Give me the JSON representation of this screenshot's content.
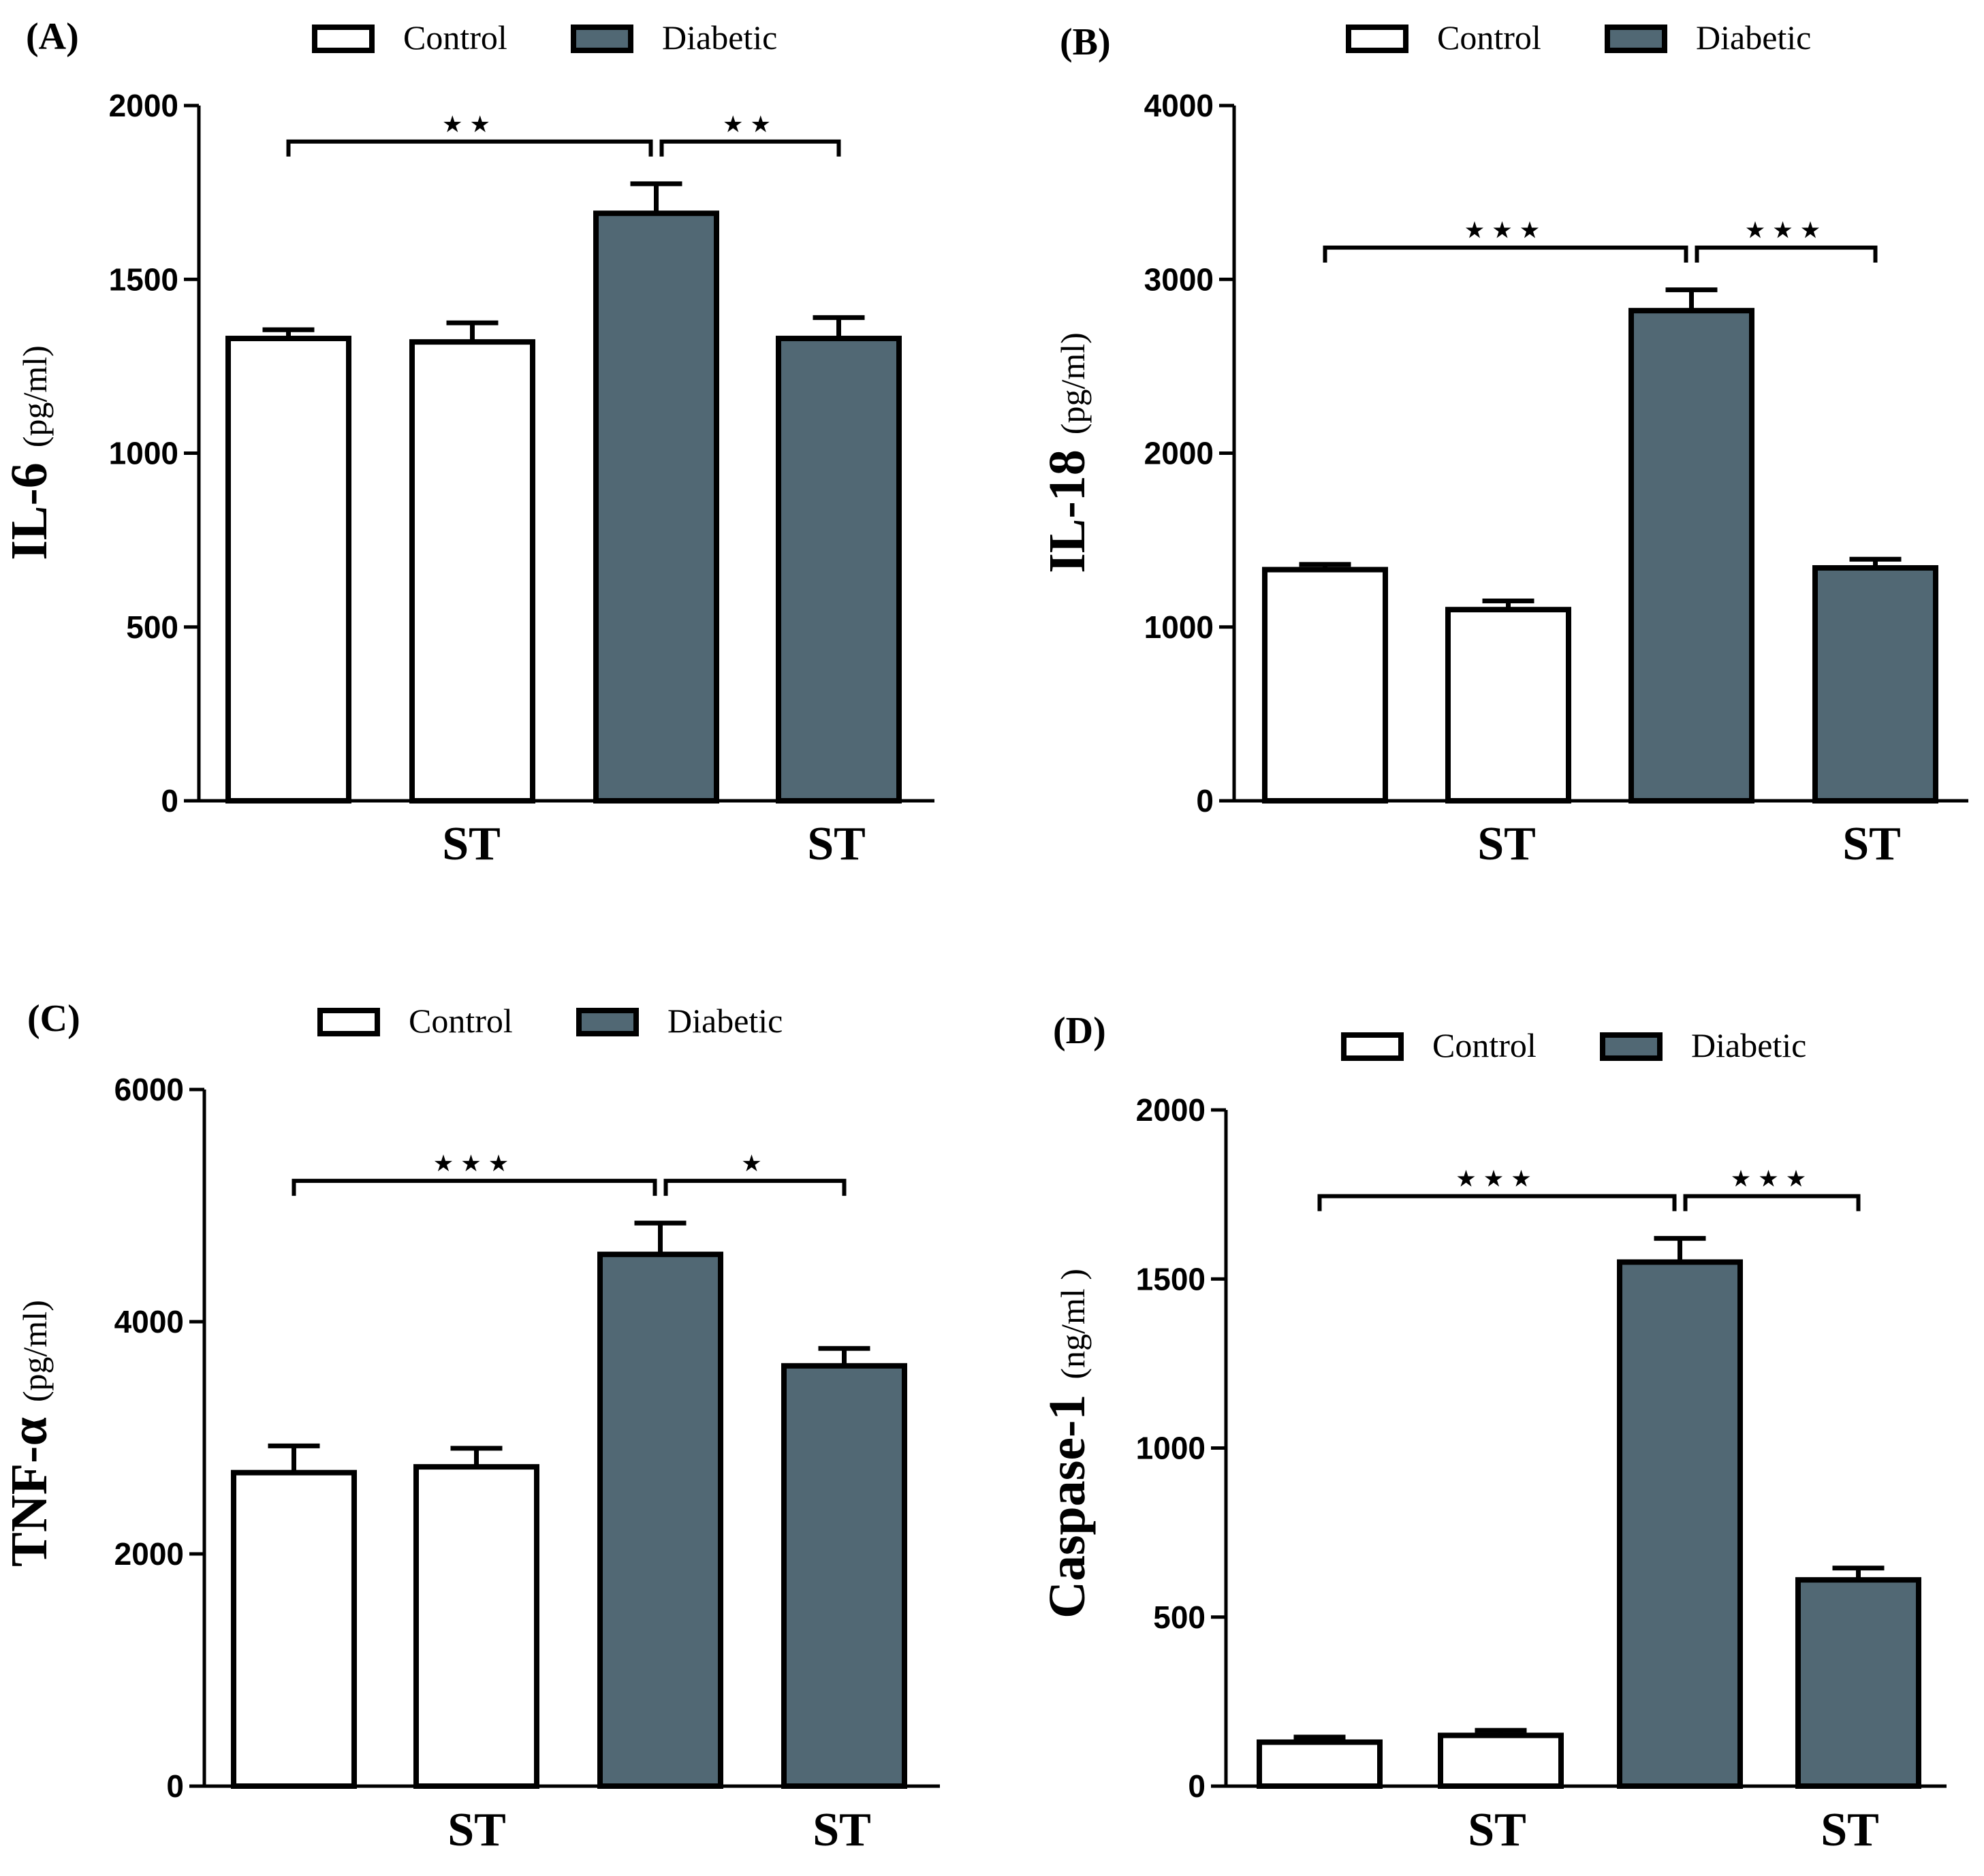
{
  "colors": {
    "control_fill": "#ffffff",
    "diabetic_fill": "#516874",
    "stroke": "#000000"
  },
  "legend": {
    "control": "Control",
    "diabetic": "Diabetic"
  },
  "chart_data": [
    {
      "type": "bar",
      "panel_label": "(A)",
      "ylabel_main": "IL-6",
      "ylabel_unit": "(pg/ml)",
      "ylim": [
        0,
        2000
      ],
      "yticks": [
        0,
        500,
        1000,
        1500,
        2000
      ],
      "grid": false,
      "legend_placement": "top",
      "x_group_labels": [
        "ST",
        "ST"
      ],
      "categories": [
        "Control",
        "Control ST",
        "Diabetic",
        "Diabetic ST"
      ],
      "series_fill": [
        "Control",
        "Control",
        "Diabetic",
        "Diabetic"
      ],
      "values": [
        1330,
        1320,
        1690,
        1330
      ],
      "errors": [
        25,
        55,
        85,
        60
      ],
      "significance": [
        {
          "from": 0,
          "to": 2,
          "label": "★★"
        },
        {
          "from": 2,
          "to": 3,
          "label": "★★"
        }
      ]
    },
    {
      "type": "bar",
      "panel_label": "(B)",
      "ylabel_main": "IL-18",
      "ylabel_unit": "(pg/ml)",
      "ylim": [
        0,
        4000
      ],
      "yticks": [
        0,
        1000,
        2000,
        3000,
        4000
      ],
      "grid": false,
      "legend_placement": "top",
      "x_group_labels": [
        "ST",
        "ST"
      ],
      "categories": [
        "Control",
        "Control ST",
        "Diabetic",
        "Diabetic ST"
      ],
      "series_fill": [
        "Control",
        "Control",
        "Diabetic",
        "Diabetic"
      ],
      "values": [
        1330,
        1100,
        2820,
        1340
      ],
      "errors": [
        30,
        50,
        120,
        50
      ],
      "significance": [
        {
          "from": 0,
          "to": 2,
          "label": "★★★"
        },
        {
          "from": 2,
          "to": 3,
          "label": "★★★"
        }
      ]
    },
    {
      "type": "bar",
      "panel_label": "(C)",
      "ylabel_main": "TNF-α",
      "ylabel_unit": "(pg/ml)",
      "ylim": [
        0,
        6000
      ],
      "yticks": [
        0,
        2000,
        4000,
        6000
      ],
      "grid": false,
      "legend_placement": "top",
      "x_group_labels": [
        "ST",
        "ST"
      ],
      "categories": [
        "Control",
        "Control ST",
        "Diabetic",
        "Diabetic ST"
      ],
      "series_fill": [
        "Control",
        "Control",
        "Diabetic",
        "Diabetic"
      ],
      "values": [
        2700,
        2750,
        4580,
        3620
      ],
      "errors": [
        230,
        160,
        270,
        150
      ],
      "significance": [
        {
          "from": 0,
          "to": 2,
          "label": "★★★"
        },
        {
          "from": 2,
          "to": 3,
          "label": "★"
        }
      ]
    },
    {
      "type": "bar",
      "panel_label": "(D)",
      "ylabel_main": "Caspase-1",
      "ylabel_unit": "(ng/ml )",
      "ylim": [
        0,
        2000
      ],
      "yticks": [
        0,
        500,
        1000,
        1500,
        2000
      ],
      "grid": false,
      "legend_placement": "top",
      "x_group_labels": [
        "ST",
        "ST"
      ],
      "categories": [
        "Control",
        "Control ST",
        "Diabetic",
        "Diabetic ST"
      ],
      "series_fill": [
        "Control",
        "Control",
        "Diabetic",
        "Diabetic"
      ],
      "values": [
        130,
        150,
        1550,
        610
      ],
      "errors": [
        15,
        15,
        70,
        35
      ],
      "significance": [
        {
          "from": 0,
          "to": 2,
          "label": "★★★"
        },
        {
          "from": 2,
          "to": 3,
          "label": "★★★"
        }
      ]
    }
  ]
}
